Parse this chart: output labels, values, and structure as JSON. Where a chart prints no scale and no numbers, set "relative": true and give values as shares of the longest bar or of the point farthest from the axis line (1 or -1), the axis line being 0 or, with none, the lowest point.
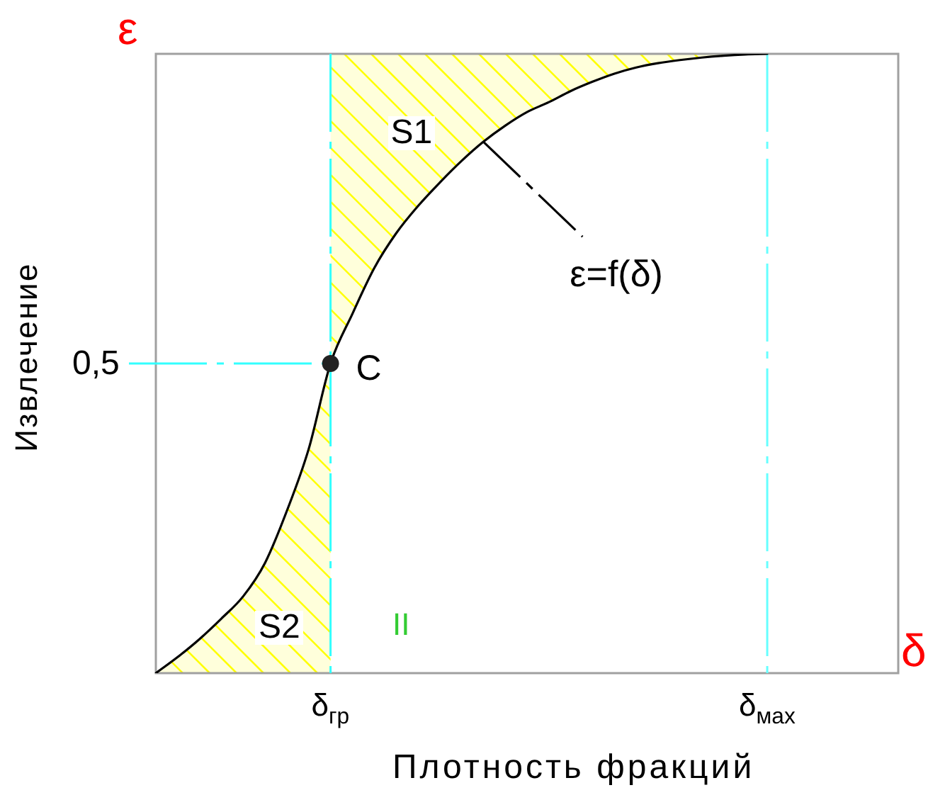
{
  "chart_data": {
    "type": "line",
    "relative": true,
    "xlabel": "Плотность фракций",
    "ylabel": "Извлечение",
    "categories": [
      null,
      null,
      null,
      null,
      null,
      null,
      null,
      null,
      "δ$_{гр}$",
      null,
      null,
      null,
      null,
      null,
      null,
      null,
      null,
      null,
      null,
      null,
      null,
      null,
      null,
      null,
      null,
      null,
      null,
      null,
      "δ$_{мах}$",
      null,
      null,
      null,
      null,
      null,
      null
    ],
    "series": [
      {
        "color": "#000000",
        "values": [
          0,
          0.026,
          0.055,
          0.088,
          0.124,
          0.178,
          0.262,
          0.362,
          0.5,
          0.58,
          0.654,
          0.71,
          0.754,
          0.792,
          0.827,
          0.858,
          0.884,
          0.906,
          0.922,
          0.94,
          0.955,
          0.968,
          0.978,
          0.985,
          0.99,
          0.994,
          0.997,
          0.999,
          1,
          null,
          null,
          null,
          null,
          null,
          null
        ]
      },
      {
        "name": "S1",
        "type": "area",
        "color": "#ffff00",
        "values": [
          null,
          null,
          null,
          null,
          null,
          null,
          null,
          null,
          1,
          1,
          1,
          1,
          1,
          1,
          1,
          1,
          1,
          1,
          1,
          1,
          1,
          1,
          1,
          1,
          1,
          1,
          1,
          1,
          1,
          null,
          null,
          null,
          null,
          null,
          null
        ]
      },
      {
        "name": "S2",
        "type": "area",
        "color": "#ffff00",
        "values": [
          0,
          0.026,
          0.055,
          0.088,
          0.124,
          0.178,
          0.262,
          0.362,
          0.5,
          null,
          null,
          null,
          null,
          null,
          null,
          null,
          null,
          null,
          null,
          null,
          null,
          null,
          null,
          null,
          null,
          null,
          null,
          null,
          null,
          null,
          null,
          null,
          null,
          null,
          null
        ]
      },
      {
        "name": "C",
        "type": "scatter",
        "color": "#222222",
        "x": [
          "δ$_{гр}$"
        ],
        "values": [
          0.5
        ],
        "marker": "circle"
      }
    ],
    "ref_lines": [
      {
        "axis": "y",
        "value": 0.5,
        "label": "0,5",
        "color": "#33ffff",
        "line_style": "dashed"
      },
      {
        "axis": "x",
        "value": "δ$_{гр}$",
        "color": "#33ffff",
        "line_style": "dashed"
      },
      {
        "axis": "x",
        "value": "δ$_{мах}$",
        "color": "#66ffff",
        "line_style": "dashed"
      }
    ],
    "annotations": [
      "ε",
      "δ",
      "II",
      "ε=f(δ)"
    ]
  }
}
